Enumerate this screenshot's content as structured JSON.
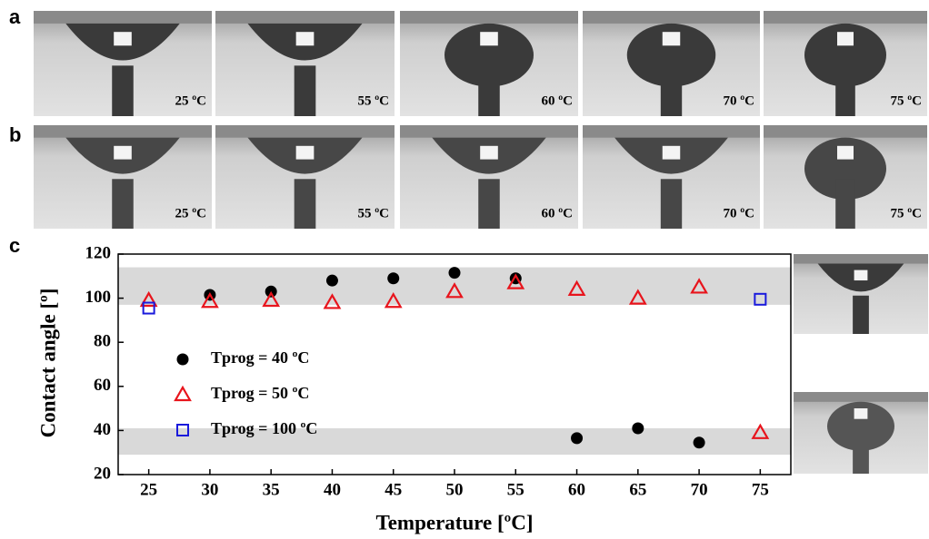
{
  "panel_labels": [
    "a",
    "b",
    "c"
  ],
  "row_a_captions": [
    "25 ºC",
    "55 ºC",
    "60 ºC",
    "70 ºC",
    "75 ºC"
  ],
  "row_b_captions": [
    "25 ºC",
    "55 ºC",
    "60 ºC",
    "70 ºC",
    "75 ºC"
  ],
  "chart_data": {
    "type": "scatter",
    "x_label": "Temperature [ºC]",
    "y_label": "Contact angle [º]",
    "x": [
      25,
      30,
      35,
      40,
      45,
      50,
      55,
      60,
      65,
      70,
      75
    ],
    "series": [
      {
        "name": "Tprog = 40 ºC",
        "color": "#000000",
        "marker": "circle",
        "values": [
          null,
          101.5,
          103,
          108,
          109,
          111.5,
          109,
          36.5,
          41,
          34.5,
          null
        ]
      },
      {
        "name": "Tprog = 50 ºC",
        "color": "#e8141c",
        "marker": "triangle",
        "values": [
          99,
          98.5,
          99,
          98,
          98.5,
          103,
          107,
          104,
          100,
          105,
          39
        ]
      },
      {
        "name": "Tprog = 100 ºC",
        "color": "#1a1adc",
        "marker": "square",
        "values": [
          95.5,
          null,
          null,
          null,
          null,
          null,
          null,
          null,
          null,
          null,
          99.5
        ]
      }
    ],
    "bands": [
      [
        97,
        114
      ],
      [
        29,
        41
      ]
    ],
    "xlim": [
      22.5,
      77.5
    ],
    "ylim": [
      20,
      120
    ],
    "xticks": [
      25,
      30,
      35,
      40,
      45,
      50,
      55,
      60,
      65,
      70,
      75
    ],
    "yticks": [
      20,
      40,
      60,
      80,
      100,
      120
    ]
  }
}
